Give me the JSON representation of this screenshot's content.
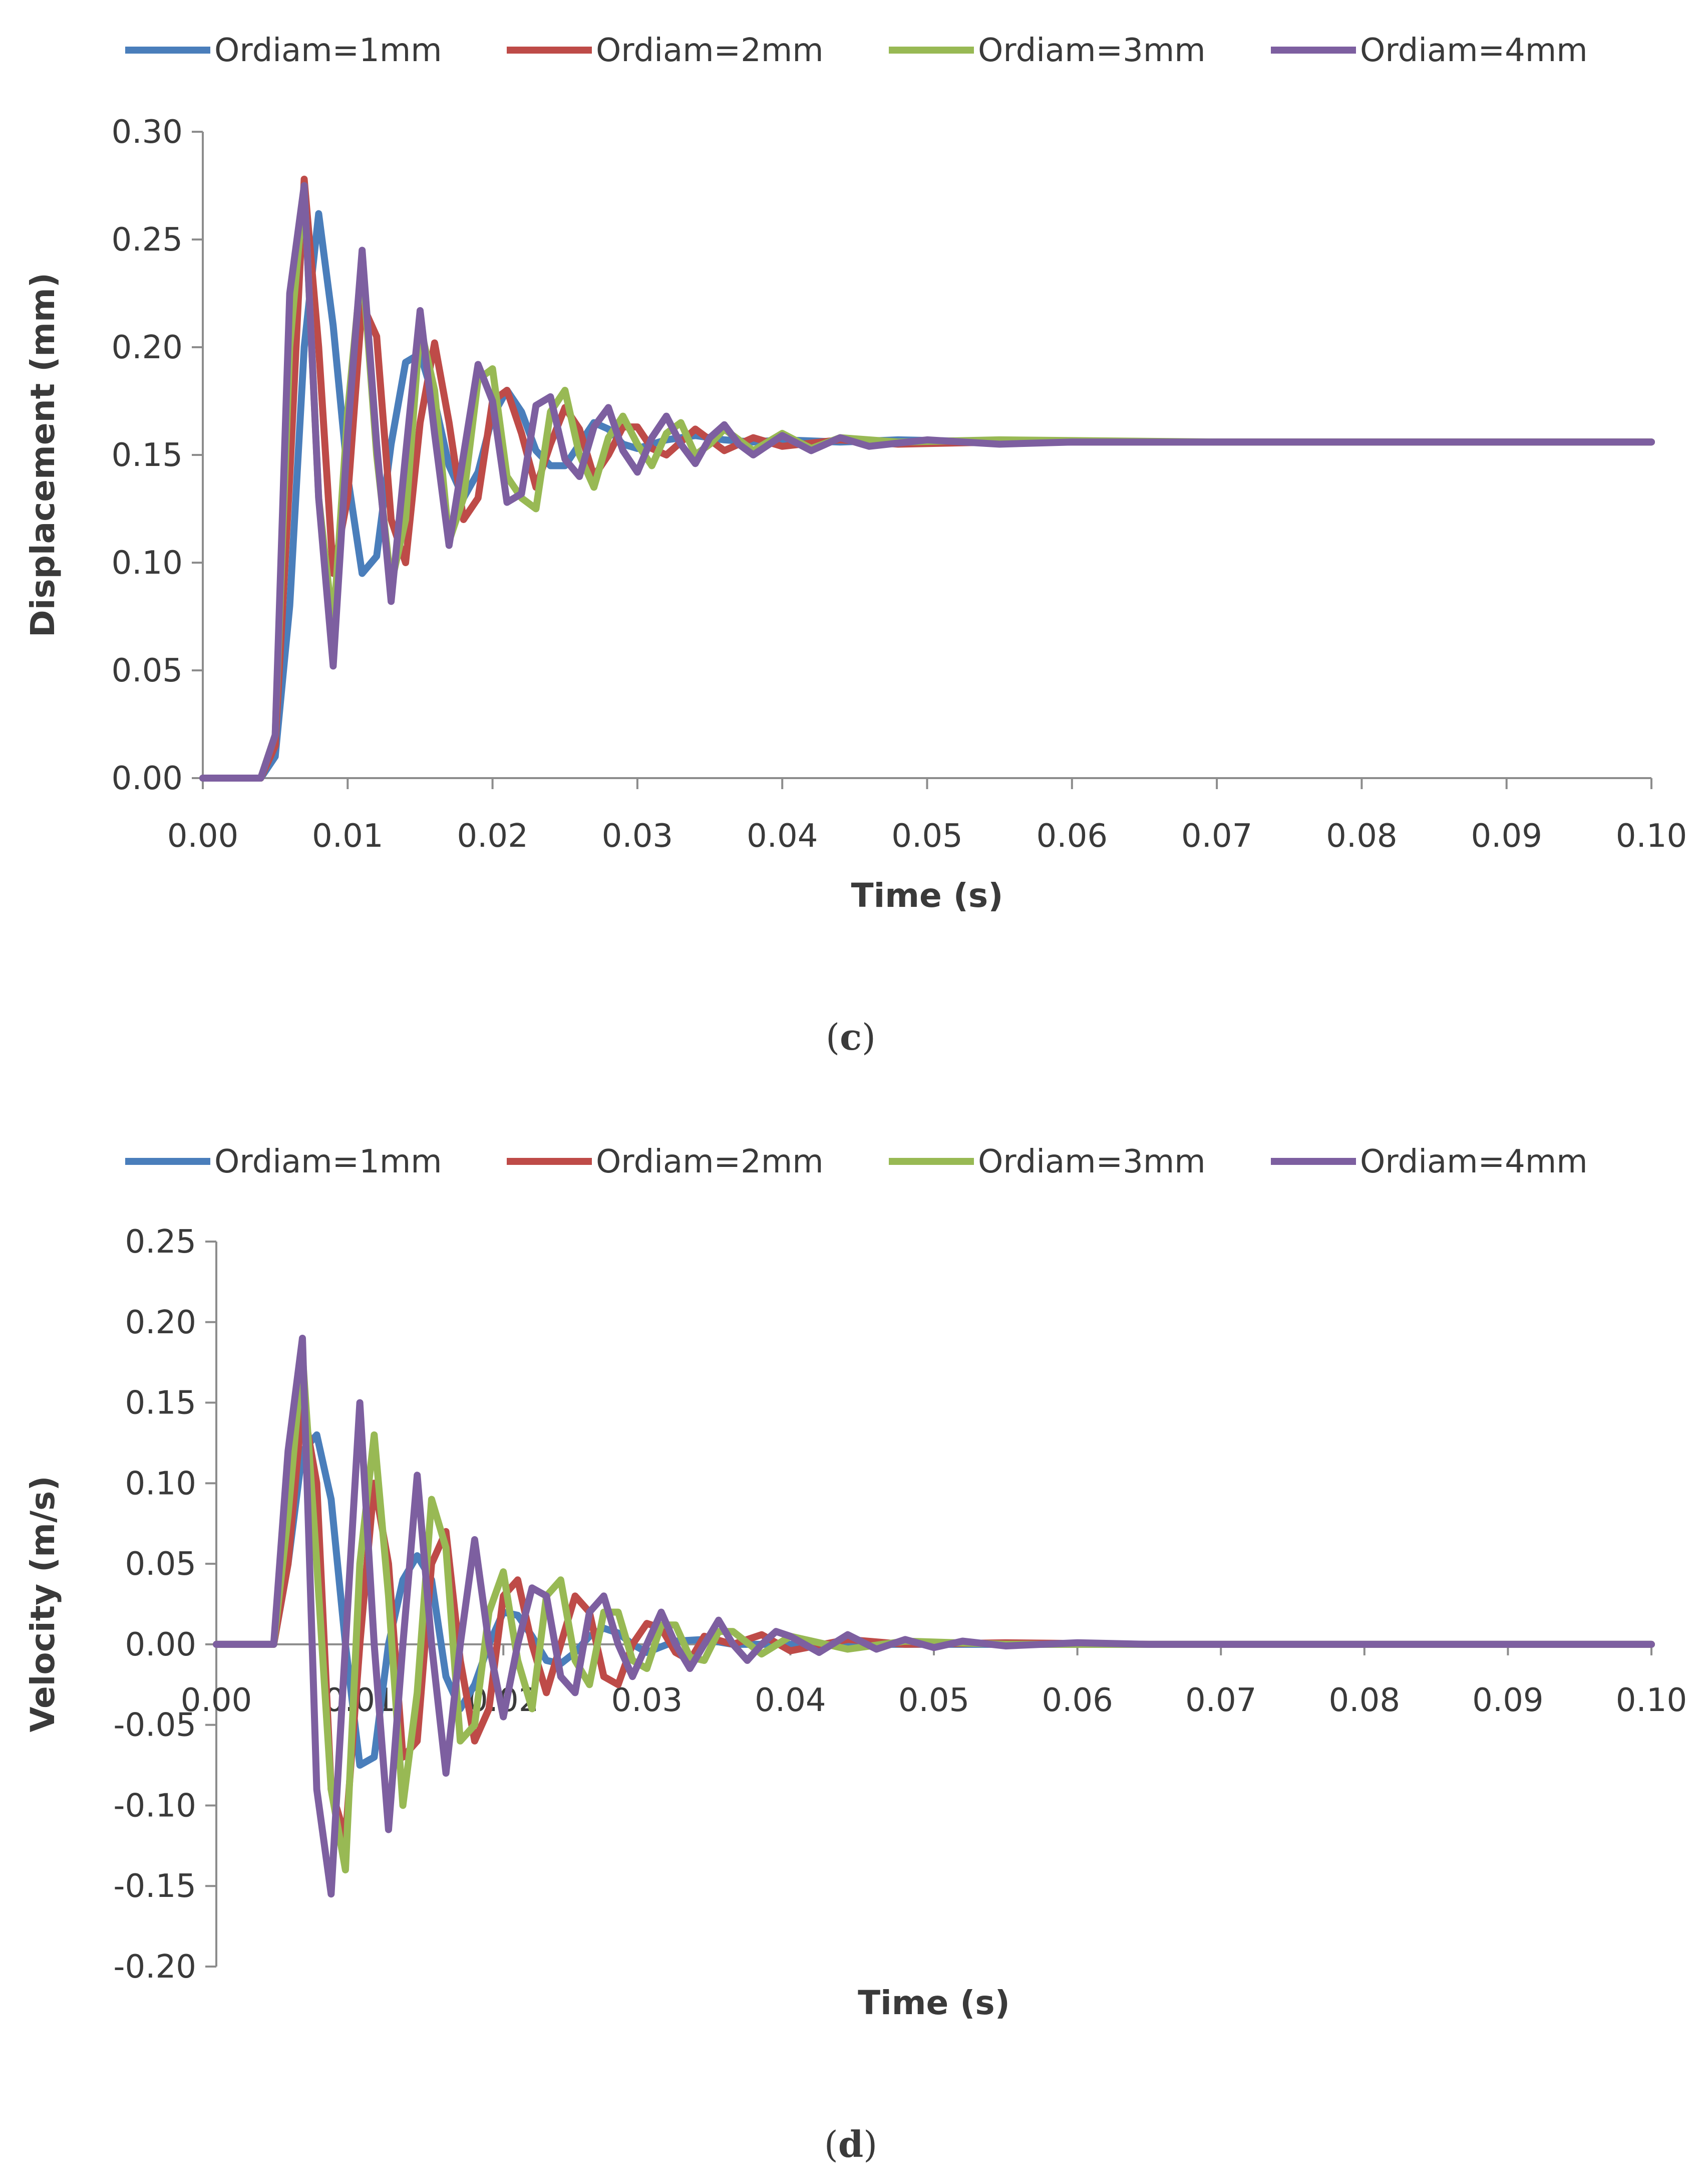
{
  "colors": {
    "series": [
      "#4a7ebb",
      "#be4b48",
      "#98b954",
      "#7d5fa0"
    ],
    "axis": "#8c8c8c",
    "text": "#3a3a3a"
  },
  "panel_c": {
    "caption_open": "(",
    "caption_letter": "c",
    "caption_close": ")"
  },
  "panel_d": {
    "caption_open": "(",
    "caption_letter": "d",
    "caption_close": ")"
  },
  "chart_data": [
    {
      "type": "line",
      "title": "",
      "xlabel": "Time (s)",
      "ylabel": "Displacement (mm)",
      "xlim": [
        0,
        0.1
      ],
      "ylim": [
        0,
        0.3
      ],
      "xticks": [
        0,
        0.01,
        0.02,
        0.03,
        0.04,
        0.05,
        0.06,
        0.07,
        0.08,
        0.09,
        0.1
      ],
      "xtick_labels": [
        "0.00",
        "0.01",
        "0.02",
        "0.03",
        "0.04",
        "0.05",
        "0.06",
        "0.07",
        "0.08",
        "0.09",
        "0.10"
      ],
      "yticks": [
        0,
        0.05,
        0.1,
        0.15,
        0.2,
        0.25,
        0.3
      ],
      "ytick_labels": [
        "0.00",
        "0.05",
        "0.10",
        "0.15",
        "0.20",
        "0.25",
        "0.30"
      ],
      "grid": false,
      "legend": "top",
      "series": [
        {
          "name": "Ordiam=1mm",
          "x": [
            0,
            0.004,
            0.005,
            0.006,
            0.007,
            0.008,
            0.009,
            0.01,
            0.011,
            0.012,
            0.013,
            0.014,
            0.015,
            0.016,
            0.017,
            0.018,
            0.019,
            0.02,
            0.021,
            0.022,
            0.023,
            0.024,
            0.025,
            0.026,
            0.027,
            0.028,
            0.029,
            0.03,
            0.032,
            0.034,
            0.036,
            0.038,
            0.04,
            0.044,
            0.048,
            0.055,
            0.07,
            0.1
          ],
          "y": [
            0,
            0,
            0.01,
            0.08,
            0.2,
            0.262,
            0.21,
            0.14,
            0.095,
            0.103,
            0.155,
            0.193,
            0.197,
            0.175,
            0.145,
            0.13,
            0.142,
            0.168,
            0.18,
            0.17,
            0.152,
            0.145,
            0.145,
            0.155,
            0.165,
            0.162,
            0.155,
            0.153,
            0.157,
            0.159,
            0.157,
            0.156,
            0.157,
            0.156,
            0.157,
            0.156,
            0.156,
            0.156
          ]
        },
        {
          "name": "Ordiam=2mm",
          "x": [
            0,
            0.004,
            0.005,
            0.006,
            0.007,
            0.008,
            0.009,
            0.01,
            0.011,
            0.012,
            0.013,
            0.014,
            0.015,
            0.016,
            0.017,
            0.018,
            0.019,
            0.02,
            0.021,
            0.022,
            0.023,
            0.024,
            0.025,
            0.026,
            0.027,
            0.028,
            0.029,
            0.03,
            0.031,
            0.032,
            0.034,
            0.036,
            0.038,
            0.04,
            0.044,
            0.048,
            0.055,
            0.07,
            0.1
          ],
          "y": [
            0,
            0,
            0.015,
            0.14,
            0.278,
            0.2,
            0.095,
            0.13,
            0.22,
            0.205,
            0.12,
            0.1,
            0.165,
            0.202,
            0.165,
            0.12,
            0.13,
            0.175,
            0.18,
            0.16,
            0.135,
            0.155,
            0.172,
            0.162,
            0.14,
            0.15,
            0.163,
            0.163,
            0.153,
            0.15,
            0.162,
            0.152,
            0.158,
            0.154,
            0.157,
            0.155,
            0.156,
            0.156,
            0.156
          ]
        },
        {
          "name": "Ordiam=3mm",
          "x": [
            0,
            0.004,
            0.005,
            0.006,
            0.007,
            0.008,
            0.009,
            0.01,
            0.011,
            0.012,
            0.013,
            0.014,
            0.015,
            0.016,
            0.017,
            0.018,
            0.019,
            0.02,
            0.021,
            0.022,
            0.023,
            0.024,
            0.025,
            0.026,
            0.027,
            0.028,
            0.029,
            0.03,
            0.031,
            0.032,
            0.033,
            0.034,
            0.035,
            0.036,
            0.038,
            0.04,
            0.042,
            0.044,
            0.048,
            0.055,
            0.07,
            0.1
          ],
          "y": [
            0,
            0,
            0.02,
            0.2,
            0.275,
            0.13,
            0.07,
            0.17,
            0.24,
            0.15,
            0.09,
            0.12,
            0.21,
            0.18,
            0.11,
            0.13,
            0.185,
            0.19,
            0.14,
            0.13,
            0.125,
            0.17,
            0.18,
            0.15,
            0.135,
            0.158,
            0.168,
            0.155,
            0.145,
            0.16,
            0.165,
            0.15,
            0.155,
            0.162,
            0.152,
            0.16,
            0.153,
            0.158,
            0.156,
            0.157,
            0.156,
            0.156
          ]
        },
        {
          "name": "Ordiam=4mm",
          "x": [
            0,
            0.004,
            0.005,
            0.006,
            0.007,
            0.008,
            0.009,
            0.01,
            0.011,
            0.012,
            0.013,
            0.014,
            0.015,
            0.016,
            0.017,
            0.018,
            0.019,
            0.02,
            0.021,
            0.022,
            0.023,
            0.024,
            0.025,
            0.026,
            0.027,
            0.028,
            0.029,
            0.03,
            0.031,
            0.032,
            0.033,
            0.034,
            0.035,
            0.036,
            0.037,
            0.038,
            0.04,
            0.042,
            0.044,
            0.046,
            0.05,
            0.055,
            0.06,
            0.07,
            0.1
          ],
          "y": [
            0,
            0,
            0.02,
            0.225,
            0.275,
            0.13,
            0.052,
            0.16,
            0.245,
            0.155,
            0.082,
            0.15,
            0.217,
            0.16,
            0.108,
            0.15,
            0.192,
            0.175,
            0.128,
            0.132,
            0.173,
            0.177,
            0.148,
            0.14,
            0.163,
            0.172,
            0.152,
            0.142,
            0.158,
            0.168,
            0.155,
            0.146,
            0.158,
            0.164,
            0.155,
            0.15,
            0.159,
            0.152,
            0.158,
            0.154,
            0.157,
            0.155,
            0.156,
            0.156,
            0.156
          ]
        }
      ]
    },
    {
      "type": "line",
      "title": "",
      "xlabel": "Time (s)",
      "ylabel": "Velocity (m/s)",
      "xlim": [
        0,
        0.1
      ],
      "ylim": [
        -0.2,
        0.25
      ],
      "xticks": [
        0,
        0.01,
        0.02,
        0.03,
        0.04,
        0.05,
        0.06,
        0.07,
        0.08,
        0.09,
        0.1
      ],
      "xtick_labels": [
        "0.00",
        "0.01",
        "0.02",
        "0.03",
        "0.04",
        "0.05",
        "0.06",
        "0.07",
        "0.08",
        "0.09",
        "0.10"
      ],
      "yticks": [
        -0.2,
        -0.15,
        -0.1,
        -0.05,
        0,
        0.05,
        0.1,
        0.15,
        0.2,
        0.25
      ],
      "ytick_labels": [
        "-0.20",
        "-0.15",
        "-0.10",
        "-0.05",
        "0.00",
        "0.05",
        "0.10",
        "0.15",
        "0.20",
        "0.25"
      ],
      "grid": false,
      "legend": "top",
      "series": [
        {
          "name": "Ordiam=1mm",
          "x": [
            0,
            0.004,
            0.005,
            0.006,
            0.007,
            0.008,
            0.009,
            0.01,
            0.011,
            0.012,
            0.013,
            0.014,
            0.015,
            0.016,
            0.017,
            0.018,
            0.019,
            0.02,
            0.021,
            0.022,
            0.023,
            0.024,
            0.025,
            0.026,
            0.027,
            0.028,
            0.029,
            0.03,
            0.032,
            0.034,
            0.036,
            0.04,
            0.045,
            0.05,
            0.06,
            0.1
          ],
          "y": [
            0,
            0,
            0.05,
            0.12,
            0.13,
            0.09,
            0.0,
            -0.075,
            -0.07,
            0.0,
            0.04,
            0.055,
            0.04,
            -0.02,
            -0.04,
            -0.025,
            0.0,
            0.02,
            0.018,
            0.005,
            -0.01,
            -0.012,
            -0.005,
            0.005,
            0.01,
            0.007,
            0.0,
            -0.005,
            0.002,
            0.003,
            0.0,
            0.0,
            0.0,
            0.0,
            0.0,
            0.0
          ]
        },
        {
          "name": "Ordiam=2mm",
          "x": [
            0,
            0.004,
            0.005,
            0.006,
            0.007,
            0.008,
            0.009,
            0.01,
            0.011,
            0.012,
            0.013,
            0.014,
            0.015,
            0.016,
            0.017,
            0.018,
            0.019,
            0.02,
            0.021,
            0.022,
            0.023,
            0.024,
            0.025,
            0.026,
            0.027,
            0.028,
            0.029,
            0.03,
            0.031,
            0.032,
            0.033,
            0.034,
            0.036,
            0.038,
            0.04,
            0.044,
            0.048,
            0.055,
            0.065,
            0.1
          ],
          "y": [
            0,
            0,
            0.05,
            0.15,
            0.1,
            -0.09,
            -0.12,
            0.0,
            0.1,
            0.05,
            -0.07,
            -0.06,
            0.05,
            0.07,
            -0.01,
            -0.06,
            -0.04,
            0.03,
            0.04,
            0.0,
            -0.03,
            0.0,
            0.03,
            0.02,
            -0.02,
            -0.025,
            0.0,
            0.013,
            0.01,
            -0.005,
            -0.01,
            0.005,
            0.0,
            0.006,
            -0.004,
            0.003,
            0.0,
            0.001,
            0.0,
            0.0
          ]
        },
        {
          "name": "Ordiam=3mm",
          "x": [
            0,
            0.004,
            0.005,
            0.006,
            0.007,
            0.008,
            0.009,
            0.01,
            0.011,
            0.012,
            0.013,
            0.014,
            0.015,
            0.016,
            0.017,
            0.018,
            0.019,
            0.02,
            0.021,
            0.022,
            0.023,
            0.024,
            0.025,
            0.026,
            0.027,
            0.028,
            0.029,
            0.03,
            0.031,
            0.032,
            0.033,
            0.034,
            0.035,
            0.036,
            0.038,
            0.04,
            0.044,
            0.048,
            0.055,
            0.065,
            0.1
          ],
          "y": [
            0,
            0,
            0.08,
            0.18,
            0.05,
            -0.09,
            -0.14,
            0.05,
            0.13,
            0.03,
            -0.1,
            -0.03,
            0.09,
            0.06,
            -0.06,
            -0.05,
            0.02,
            0.045,
            -0.01,
            -0.04,
            0.03,
            0.04,
            -0.01,
            -0.025,
            0.02,
            0.02,
            -0.01,
            -0.015,
            0.012,
            0.012,
            -0.008,
            -0.01,
            0.008,
            0.008,
            -0.006,
            0.005,
            -0.003,
            0.002,
            0.0,
            0.0,
            0.0
          ]
        },
        {
          "name": "Ordiam=4mm",
          "x": [
            0,
            0.004,
            0.005,
            0.006,
            0.007,
            0.008,
            0.009,
            0.01,
            0.011,
            0.012,
            0.013,
            0.014,
            0.015,
            0.016,
            0.017,
            0.018,
            0.019,
            0.02,
            0.021,
            0.022,
            0.023,
            0.024,
            0.025,
            0.026,
            0.027,
            0.028,
            0.029,
            0.03,
            0.031,
            0.032,
            0.033,
            0.034,
            0.035,
            0.036,
            0.037,
            0.038,
            0.039,
            0.04,
            0.042,
            0.044,
            0.046,
            0.048,
            0.05,
            0.052,
            0.055,
            0.06,
            0.065,
            0.1
          ],
          "y": [
            0,
            0,
            0.12,
            0.19,
            -0.09,
            -0.155,
            0.0,
            0.15,
            0.0,
            -0.115,
            0.0,
            0.105,
            0.0,
            -0.08,
            0.0,
            0.065,
            0.0,
            -0.045,
            0.0,
            0.035,
            0.03,
            -0.02,
            -0.03,
            0.02,
            0.03,
            0.0,
            -0.02,
            0.0,
            0.02,
            0.0,
            -0.015,
            0.0,
            0.015,
            0.0,
            -0.01,
            0.0,
            0.008,
            0.005,
            -0.005,
            0.006,
            -0.003,
            0.003,
            -0.002,
            0.002,
            -0.001,
            0.001,
            0.0,
            0.0
          ]
        }
      ]
    }
  ]
}
